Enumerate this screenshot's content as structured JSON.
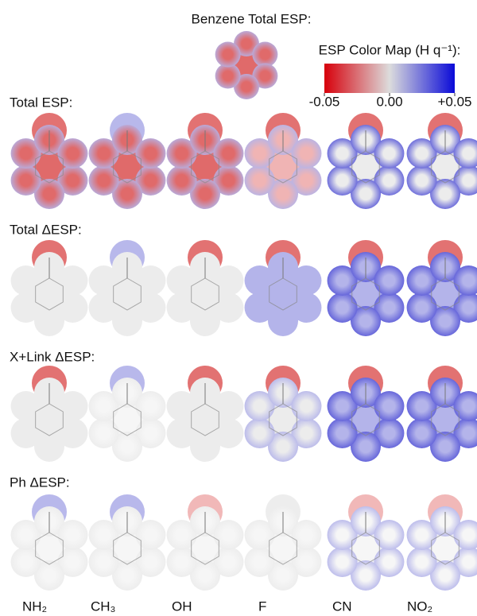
{
  "header": {
    "title": "Benzene Total ESP:"
  },
  "colormap": {
    "title": "ESP Color Map (H q⁻¹):",
    "colors": [
      "#d7000b",
      "#dcdcdc",
      "#0a0ad8"
    ],
    "ticks": [
      {
        "value": -0.05,
        "label": "-0.05"
      },
      {
        "value": 0,
        "label": "0.00"
      },
      {
        "value": 0.05,
        "label": "+0.05"
      }
    ]
  },
  "rows": [
    "Total ESP:",
    "Total ΔESP:",
    "X+Link ΔESP:",
    "Ph ΔESP:"
  ],
  "columns": [
    "NH₂",
    "CH₃",
    "OH",
    "F",
    "CN",
    "NO₂"
  ]
}
